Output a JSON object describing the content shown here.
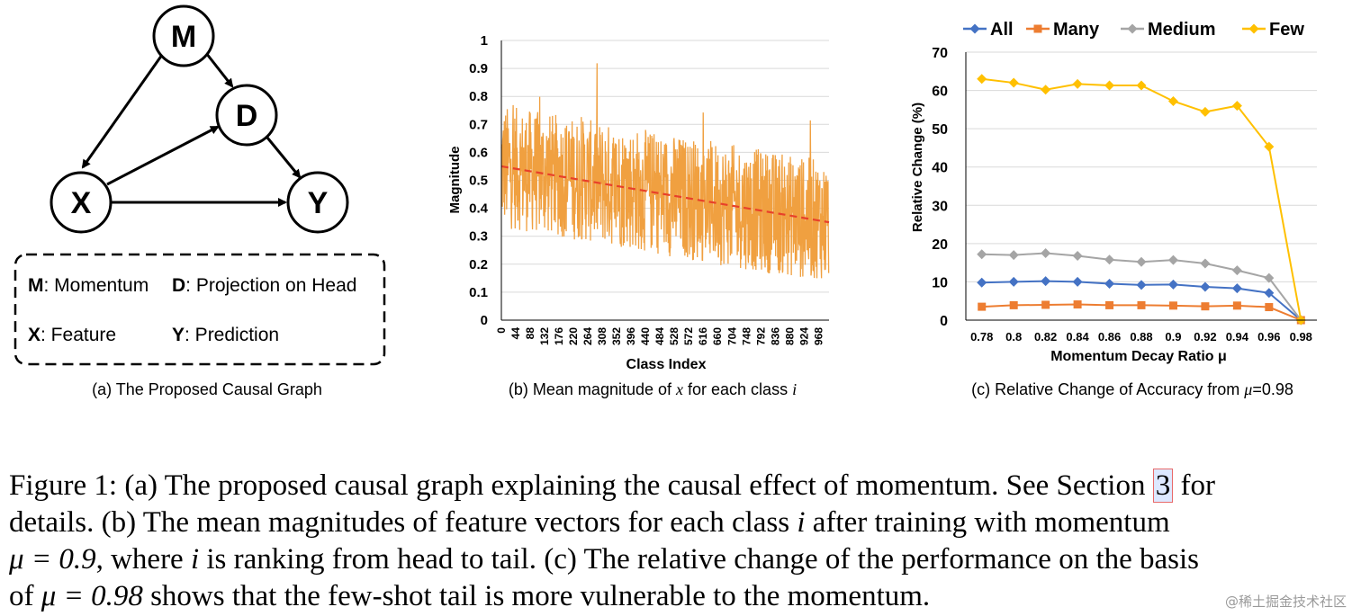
{
  "panel_a": {
    "nodes": [
      {
        "id": "M",
        "label": "M"
      },
      {
        "id": "D",
        "label": "D"
      },
      {
        "id": "X",
        "label": "X"
      },
      {
        "id": "Y",
        "label": "Y"
      }
    ],
    "edges": [
      [
        "M",
        "D"
      ],
      [
        "M",
        "X"
      ],
      [
        "X",
        "D"
      ],
      [
        "D",
        "Y"
      ],
      [
        "X",
        "Y"
      ]
    ],
    "legend": {
      "m_key": "M",
      "m_text": ": Momentum",
      "d_key": "D",
      "d_text": ": Projection on Head",
      "x_key": "X",
      "x_text": ": Feature",
      "y_key": "Y",
      "y_text": ": Prediction"
    },
    "caption": "(a) The Proposed Causal Graph"
  },
  "panel_b": {
    "caption_prefix": "(b) Mean magnitude of ",
    "caption_x": "x",
    "caption_middle": " for each class ",
    "caption_i": "i"
  },
  "panel_c": {
    "caption_prefix": "(c) Relative Change of Accuracy from ",
    "caption_mu": "μ",
    "caption_suffix": "=0.98"
  },
  "chart_data": [
    {
      "type": "line",
      "title": "",
      "xlabel": "Class Index",
      "ylabel": "Magnitude",
      "xlim": [
        0,
        1000
      ],
      "ylim": [
        0,
        1
      ],
      "yticks": [
        "0",
        "0.1",
        "0.2",
        "0.3",
        "0.4",
        "0.5",
        "0.6",
        "0.7",
        "0.8",
        "0.9",
        "1"
      ],
      "xticks": [
        "0",
        "44",
        "88",
        "132",
        "176",
        "220",
        "264",
        "308",
        "352",
        "396",
        "440",
        "484",
        "528",
        "572",
        "616",
        "660",
        "704",
        "748",
        "792",
        "836",
        "880",
        "924",
        "968"
      ],
      "series": [
        {
          "name": "Magnitude",
          "color": "#f0a040",
          "trend_start": 0.55,
          "trend_end": 0.35,
          "noise_amplitude": 0.22
        },
        {
          "name": "Trend",
          "color": "#e8402a",
          "x": [
            0,
            1000
          ],
          "values": [
            0.55,
            0.35
          ]
        }
      ]
    },
    {
      "type": "line",
      "title": "",
      "xlabel": "Momentum Decay Ratio μ",
      "ylabel": "Relative Change (%)",
      "ylim": [
        0,
        70
      ],
      "yticks": [
        "0",
        "10",
        "20",
        "30",
        "40",
        "50",
        "60",
        "70"
      ],
      "categories": [
        "0.78",
        "0.8",
        "0.82",
        "0.84",
        "0.86",
        "0.88",
        "0.9",
        "0.92",
        "0.94",
        "0.96",
        "0.98"
      ],
      "legend_position": "top",
      "series": [
        {
          "name": "All",
          "color": "#4472c4",
          "marker": "diamond",
          "values": [
            9.8,
            10.0,
            10.2,
            10.0,
            9.5,
            9.2,
            9.3,
            8.7,
            8.3,
            7.1,
            0
          ]
        },
        {
          "name": "Many",
          "color": "#ed7d31",
          "marker": "square",
          "values": [
            3.5,
            3.9,
            4.0,
            4.1,
            3.9,
            3.9,
            3.8,
            3.6,
            3.8,
            3.4,
            0
          ]
        },
        {
          "name": "Medium",
          "color": "#a5a5a5",
          "marker": "diamond",
          "values": [
            17.2,
            17.0,
            17.5,
            16.8,
            15.8,
            15.2,
            15.7,
            14.8,
            13.0,
            11.0,
            0
          ]
        },
        {
          "name": "Few",
          "color": "#ffc000",
          "marker": "diamond",
          "values": [
            63.0,
            62.0,
            60.2,
            61.7,
            61.3,
            61.3,
            57.2,
            54.4,
            56.0,
            45.3,
            0
          ]
        }
      ]
    }
  ],
  "figure_caption": {
    "line1_prefix": "Figure 1: (a) The proposed causal graph explaining the causal effect of momentum. See Section ",
    "line1_ref": "3",
    "line1_suffix": " for",
    "line2_prefix": "details. (b) The mean magnitudes of feature vectors for each class ",
    "line2_i": "i",
    "line2_suffix": " after training with momentum",
    "line3_math": "μ = 0.9",
    "line3_middle": ", where ",
    "line3_i": "i",
    "line3_suffix": " is ranking from head to tail. (c) The relative change of the performance on the basis",
    "line4_prefix": "of ",
    "line4_math": "μ = 0.98",
    "line4_suffix": " shows that the few-shot tail is more vulnerable to the momentum."
  },
  "watermark": "@稀土掘金技术社区"
}
